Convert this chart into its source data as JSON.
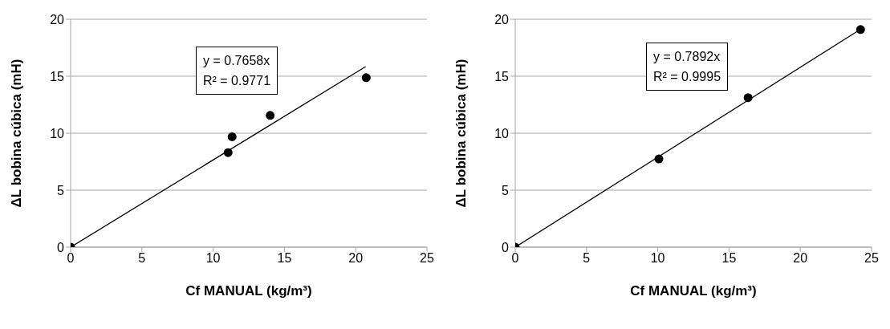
{
  "chart_data": [
    {
      "type": "scatter",
      "xlabel": "Cf MANUAL (kg/m³)",
      "ylabel": "ΔL bobina cúbica (mH)",
      "xlim": [
        0,
        25
      ],
      "xticks": [
        0,
        5,
        10,
        15,
        20,
        25
      ],
      "ylim": [
        0,
        20
      ],
      "yticks": [
        0,
        5,
        10,
        15,
        20
      ],
      "grid": "y",
      "legend": false,
      "annotations": [
        "y = 0.7658x",
        "R² = 0.9771"
      ],
      "series": [
        {
          "color": "#000000",
          "marker": "circle",
          "x": [
            0,
            11.05,
            11.33,
            14.0,
            20.74
          ],
          "values": [
            0,
            8.3,
            9.69,
            11.56,
            14.87
          ]
        },
        {
          "type": "line",
          "color": "#000000",
          "marker": "none",
          "line_style": "solid",
          "x": [
            0,
            20.7
          ],
          "values": [
            0,
            15.85
          ]
        }
      ]
    },
    {
      "type": "scatter",
      "xlabel": "Cf MANUAL (kg/m³)",
      "ylabel": "ΔL bobina cúbica (mH)",
      "xlim": [
        0,
        25
      ],
      "xticks": [
        0,
        5,
        10,
        15,
        20,
        25
      ],
      "ylim": [
        0,
        20
      ],
      "yticks": [
        0,
        5,
        10,
        15,
        20
      ],
      "grid": "y",
      "legend": false,
      "annotations": [
        "y = 0.7892x",
        "R² = 0.9995"
      ],
      "series": [
        {
          "color": "#000000",
          "marker": "circle",
          "x": [
            0,
            10.08,
            16.34,
            24.23
          ],
          "values": [
            0,
            7.74,
            13.12,
            19.1
          ]
        },
        {
          "type": "line",
          "color": "#000000",
          "marker": "none",
          "line_style": "solid",
          "x": [
            0,
            24.23
          ],
          "values": [
            0,
            19.12
          ]
        }
      ]
    }
  ]
}
